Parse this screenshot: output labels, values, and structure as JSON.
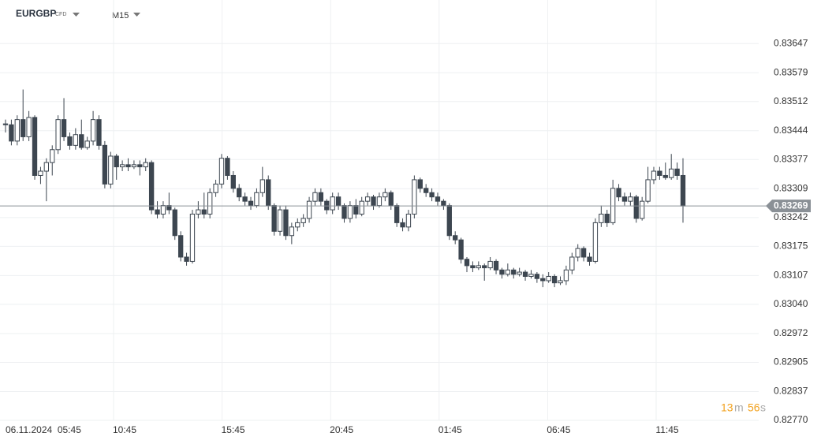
{
  "header": {
    "symbol": "EURGBP",
    "instrument_type": "CFD",
    "timeframe": "M15"
  },
  "chart_data": {
    "type": "candlestick",
    "x_labels": [
      "06.11.2024  05:45",
      "10:45",
      "15:45",
      "20:45",
      "01:45",
      "06:45",
      "11:45"
    ],
    "ylim": [
      0.8277,
      0.8373
    ],
    "yticks": [
      0.83647,
      0.83579,
      0.83512,
      0.83444,
      0.83377,
      0.83309,
      0.83242,
      0.83175,
      0.83107,
      {
        "value": 0.8304,
        "label": "0.83040"
      },
      0.82972,
      0.82905,
      0.82837,
      {
        "value": 0.8277,
        "label": "0.82770"
      }
    ],
    "grid": true,
    "up_color": "#ffffff",
    "down_color": "#3d4650",
    "current_price": 0.83269,
    "countdown": {
      "minutes": "13",
      "minutes_unit": "m",
      "seconds": "56",
      "seconds_unit": "s"
    },
    "ohlc": [
      [
        0.8346,
        0.8347,
        0.8344,
        0.83458
      ],
      [
        0.83458,
        0.8347,
        0.8341,
        0.8342
      ],
      [
        0.8342,
        0.8348,
        0.8341,
        0.8347
      ],
      [
        0.8347,
        0.8354,
        0.8342,
        0.8343
      ],
      [
        0.8343,
        0.8349,
        0.8342,
        0.83475
      ],
      [
        0.83475,
        0.8348,
        0.8333,
        0.8334
      ],
      [
        0.8334,
        0.8336,
        0.8332,
        0.8335
      ],
      [
        0.8335,
        0.8338,
        0.8328,
        0.8337
      ],
      [
        0.8337,
        0.8341,
        0.8334,
        0.834
      ],
      [
        0.834,
        0.8348,
        0.8339,
        0.8347
      ],
      [
        0.8347,
        0.8352,
        0.8342,
        0.8343
      ],
      [
        0.8343,
        0.8344,
        0.834,
        0.8341
      ],
      [
        0.8341,
        0.8345,
        0.834,
        0.83435
      ],
      [
        0.83435,
        0.8347,
        0.834,
        0.83405
      ],
      [
        0.83405,
        0.8343,
        0.834,
        0.8342
      ],
      [
        0.8342,
        0.8349,
        0.8341,
        0.8347
      ],
      [
        0.8347,
        0.8348,
        0.834,
        0.8341
      ],
      [
        0.8341,
        0.8342,
        0.8331,
        0.8332
      ],
      [
        0.8332,
        0.83395,
        0.8331,
        0.83385
      ],
      [
        0.83385,
        0.8339,
        0.8333,
        0.8336
      ],
      [
        0.8336,
        0.83375,
        0.8335,
        0.83365
      ],
      [
        0.83365,
        0.8338,
        0.8335,
        0.8336
      ],
      [
        0.8336,
        0.83375,
        0.83355,
        0.83365
      ],
      [
        0.83365,
        0.83375,
        0.8334,
        0.8336
      ],
      [
        0.8336,
        0.8338,
        0.8335,
        0.8337
      ],
      [
        0.8337,
        0.83375,
        0.8325,
        0.8326
      ],
      [
        0.8326,
        0.8328,
        0.8324,
        0.8325
      ],
      [
        0.8325,
        0.8328,
        0.8324,
        0.8327
      ],
      [
        0.8327,
        0.833,
        0.8325,
        0.8326
      ],
      [
        0.8326,
        0.83265,
        0.8319,
        0.832
      ],
      [
        0.832,
        0.8321,
        0.8314,
        0.8315
      ],
      [
        0.8315,
        0.8316,
        0.8313,
        0.8314
      ],
      [
        0.8314,
        0.8326,
        0.83135,
        0.8325
      ],
      [
        0.8325,
        0.8328,
        0.8324,
        0.8326
      ],
      [
        0.8326,
        0.833,
        0.8324,
        0.8325
      ],
      [
        0.8325,
        0.8331,
        0.8324,
        0.833
      ],
      [
        0.833,
        0.8333,
        0.8329,
        0.8332
      ],
      [
        0.8332,
        0.8339,
        0.8331,
        0.8338
      ],
      [
        0.8338,
        0.83385,
        0.8333,
        0.8334
      ],
      [
        0.8334,
        0.8335,
        0.833,
        0.8331
      ],
      [
        0.8331,
        0.8332,
        0.8328,
        0.8329
      ],
      [
        0.8329,
        0.833,
        0.8327,
        0.8328
      ],
      [
        0.8328,
        0.8329,
        0.8326,
        0.8327
      ],
      [
        0.8327,
        0.8331,
        0.83265,
        0.833
      ],
      [
        0.833,
        0.8336,
        0.8329,
        0.8333
      ],
      [
        0.8333,
        0.8334,
        0.8326,
        0.8327
      ],
      [
        0.8327,
        0.83275,
        0.832,
        0.8321
      ],
      [
        0.8321,
        0.8327,
        0.832,
        0.8326
      ],
      [
        0.8326,
        0.8327,
        0.8319,
        0.832
      ],
      [
        0.832,
        0.8323,
        0.8318,
        0.8322
      ],
      [
        0.8322,
        0.8324,
        0.8321,
        0.8323
      ],
      [
        0.8323,
        0.8325,
        0.8322,
        0.8324
      ],
      [
        0.8324,
        0.8329,
        0.8323,
        0.8328
      ],
      [
        0.8328,
        0.8331,
        0.8327,
        0.833
      ],
      [
        0.833,
        0.8331,
        0.8327,
        0.8328
      ],
      [
        0.8328,
        0.83285,
        0.8325,
        0.8326
      ],
      [
        0.8326,
        0.833,
        0.8325,
        0.8329
      ],
      [
        0.8329,
        0.833,
        0.8326,
        0.8327
      ],
      [
        0.8327,
        0.83275,
        0.8323,
        0.8324
      ],
      [
        0.8324,
        0.8328,
        0.8323,
        0.8327
      ],
      [
        0.8327,
        0.83285,
        0.8324,
        0.8325
      ],
      [
        0.8325,
        0.8329,
        0.83245,
        0.8328
      ],
      [
        0.8328,
        0.833,
        0.8327,
        0.8329
      ],
      [
        0.8329,
        0.83295,
        0.8326,
        0.8327
      ],
      [
        0.8327,
        0.833,
        0.83265,
        0.8329
      ],
      [
        0.8329,
        0.8331,
        0.8328,
        0.833
      ],
      [
        0.833,
        0.83305,
        0.8326,
        0.8327
      ],
      [
        0.8327,
        0.83275,
        0.8322,
        0.8323
      ],
      [
        0.8323,
        0.8324,
        0.8321,
        0.8322
      ],
      [
        0.8322,
        0.8326,
        0.8321,
        0.8325
      ],
      [
        0.8325,
        0.8334,
        0.8324,
        0.8333
      ],
      [
        0.8333,
        0.83335,
        0.833,
        0.8331
      ],
      [
        0.8331,
        0.8332,
        0.8329,
        0.833
      ],
      [
        0.833,
        0.8331,
        0.8328,
        0.8329
      ],
      [
        0.8329,
        0.833,
        0.8327,
        0.8328
      ],
      [
        0.8328,
        0.83285,
        0.8326,
        0.8327
      ],
      [
        0.8327,
        0.83275,
        0.8319,
        0.832
      ],
      [
        0.832,
        0.8321,
        0.8318,
        0.8319
      ],
      [
        0.8319,
        0.83195,
        0.83135,
        0.83145
      ],
      [
        0.83145,
        0.8315,
        0.83115,
        0.8313
      ],
      [
        0.8313,
        0.8314,
        0.83115,
        0.83125
      ],
      [
        0.83125,
        0.8314,
        0.8312,
        0.8313
      ],
      [
        0.8313,
        0.83135,
        0.83095,
        0.83125
      ],
      [
        0.83125,
        0.8315,
        0.8312,
        0.8314
      ],
      [
        0.8314,
        0.83145,
        0.8311,
        0.8312
      ],
      [
        0.8312,
        0.83125,
        0.831,
        0.8311
      ],
      [
        0.8311,
        0.83135,
        0.83105,
        0.8312
      ],
      [
        0.8312,
        0.83125,
        0.831,
        0.8311
      ],
      [
        0.8311,
        0.83125,
        0.83105,
        0.83115
      ],
      [
        0.83115,
        0.8312,
        0.83095,
        0.83105
      ],
      [
        0.83105,
        0.8312,
        0.831,
        0.8311
      ],
      [
        0.8311,
        0.83115,
        0.8309,
        0.831
      ],
      [
        0.831,
        0.8311,
        0.8308,
        0.83095
      ],
      [
        0.83095,
        0.83115,
        0.8309,
        0.83105
      ],
      [
        0.83105,
        0.8311,
        0.8308,
        0.8309
      ],
      [
        0.8309,
        0.83105,
        0.83085,
        0.83095
      ],
      [
        0.83095,
        0.8313,
        0.83085,
        0.8312
      ],
      [
        0.8312,
        0.8316,
        0.8311,
        0.8315
      ],
      [
        0.8315,
        0.8318,
        0.8314,
        0.8317
      ],
      [
        0.8317,
        0.83175,
        0.8314,
        0.8315
      ],
      [
        0.8315,
        0.8316,
        0.8313,
        0.8314
      ],
      [
        0.8314,
        0.8324,
        0.83135,
        0.8323
      ],
      [
        0.8323,
        0.8327,
        0.8322,
        0.8325
      ],
      [
        0.8325,
        0.8326,
        0.8322,
        0.8323
      ],
      [
        0.8323,
        0.8333,
        0.83225,
        0.8331
      ],
      [
        0.8331,
        0.8332,
        0.8328,
        0.8329
      ],
      [
        0.8329,
        0.833,
        0.8327,
        0.8328
      ],
      [
        0.8328,
        0.833,
        0.8327,
        0.8329
      ],
      [
        0.8329,
        0.83295,
        0.8323,
        0.8324
      ],
      [
        0.8324,
        0.8329,
        0.83235,
        0.8328
      ],
      [
        0.8328,
        0.8336,
        0.83275,
        0.8333
      ],
      [
        0.8333,
        0.8336,
        0.8332,
        0.8335
      ],
      [
        0.8335,
        0.8336,
        0.8333,
        0.8334
      ],
      [
        0.8334,
        0.8337,
        0.8333,
        0.83335
      ],
      [
        0.83335,
        0.8339,
        0.8333,
        0.83355
      ],
      [
        0.83355,
        0.8337,
        0.8333,
        0.8334
      ],
      [
        0.8334,
        0.8338,
        0.8323,
        0.83269
      ]
    ]
  }
}
